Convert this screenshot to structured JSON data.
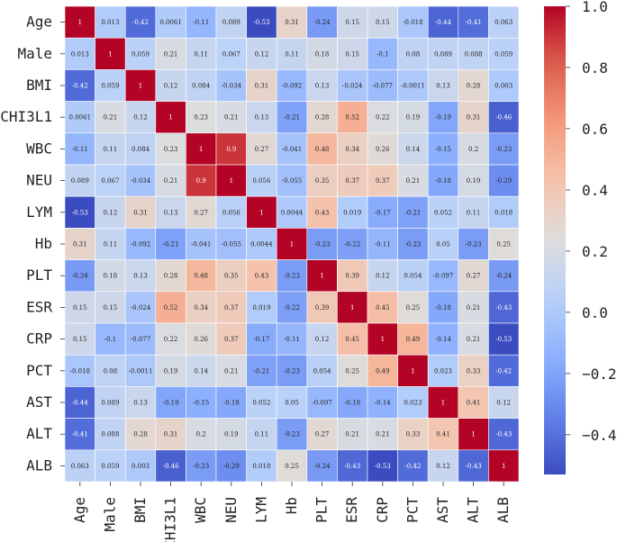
{
  "chart_data": {
    "type": "heatmap",
    "title": "",
    "xlabel": "",
    "ylabel": "",
    "rows": [
      "Age",
      "Male",
      "BMI",
      "CHI3L1",
      "WBC",
      "NEU",
      "LYM",
      "Hb",
      "PLT",
      "ESR",
      "CRP",
      "PCT",
      "AST",
      "ALT",
      "ALB"
    ],
    "columns": [
      "Age",
      "Male",
      "BMI",
      "CHI3L1",
      "WBC",
      "NEU",
      "LYM",
      "Hb",
      "PLT",
      "ESR",
      "CRP",
      "PCT",
      "AST",
      "ALT",
      "ALB"
    ],
    "values": [
      [
        1,
        0.013,
        -0.42,
        0.0061,
        -0.11,
        0.089,
        -0.53,
        0.31,
        -0.24,
        0.15,
        0.15,
        -0.018,
        -0.44,
        -0.41,
        0.063
      ],
      [
        0.013,
        1,
        0.059,
        0.21,
        0.11,
        0.067,
        0.12,
        0.11,
        0.18,
        0.15,
        -0.1,
        0.08,
        0.089,
        0.088,
        0.059
      ],
      [
        -0.42,
        0.059,
        1,
        0.12,
        0.084,
        -0.034,
        0.31,
        -0.092,
        0.13,
        -0.024,
        -0.077,
        -0.0011,
        0.13,
        0.28,
        0.003
      ],
      [
        0.0061,
        0.21,
        0.12,
        1,
        0.23,
        0.21,
        0.13,
        -0.21,
        0.28,
        0.52,
        0.22,
        0.19,
        -0.19,
        0.31,
        -0.46
      ],
      [
        -0.11,
        0.11,
        0.084,
        0.23,
        1,
        0.9,
        0.27,
        -0.041,
        0.48,
        0.34,
        0.26,
        0.14,
        -0.15,
        0.2,
        -0.23
      ],
      [
        0.089,
        0.067,
        -0.034,
        0.21,
        0.9,
        1,
        0.056,
        -0.055,
        0.35,
        0.37,
        0.37,
        0.21,
        -0.18,
        0.19,
        -0.29
      ],
      [
        -0.53,
        0.12,
        0.31,
        0.13,
        0.27,
        0.056,
        1,
        0.0044,
        0.43,
        0.019,
        -0.17,
        -0.21,
        0.052,
        0.11,
        0.018
      ],
      [
        0.31,
        0.11,
        -0.092,
        -0.21,
        -0.041,
        -0.055,
        0.0044,
        1,
        -0.23,
        -0.22,
        -0.11,
        -0.23,
        0.05,
        -0.23,
        0.25
      ],
      [
        -0.24,
        0.18,
        0.13,
        0.28,
        0.48,
        0.35,
        0.43,
        -0.23,
        1,
        0.39,
        0.12,
        0.054,
        -0.097,
        0.27,
        -0.24
      ],
      [
        0.15,
        0.15,
        -0.024,
        0.52,
        0.34,
        0.37,
        0.019,
        -0.22,
        0.39,
        1,
        0.45,
        0.25,
        -0.18,
        0.21,
        -0.43
      ],
      [
        0.15,
        -0.1,
        -0.077,
        0.22,
        0.26,
        0.37,
        -0.17,
        -0.11,
        0.12,
        0.45,
        1,
        0.49,
        -0.14,
        0.21,
        -0.53
      ],
      [
        -0.018,
        0.08,
        -0.0011,
        0.19,
        0.14,
        0.21,
        -0.21,
        -0.23,
        0.054,
        0.25,
        0.49,
        1,
        0.023,
        0.33,
        -0.42
      ],
      [
        -0.44,
        0.089,
        0.13,
        -0.19,
        -0.15,
        -0.18,
        0.052,
        0.05,
        -0.097,
        -0.18,
        -0.14,
        0.023,
        1,
        0.41,
        0.12
      ],
      [
        -0.41,
        0.088,
        0.28,
        0.31,
        0.2,
        0.19,
        0.11,
        -0.23,
        0.27,
        0.21,
        0.21,
        0.33,
        0.41,
        1,
        -0.43
      ],
      [
        0.063,
        0.059,
        0.003,
        -0.46,
        -0.23,
        -0.29,
        0.018,
        0.25,
        -0.24,
        -0.43,
        -0.53,
        -0.42,
        0.12,
        -0.43,
        1
      ]
    ],
    "colormap": "coolwarm",
    "vmin": -0.53,
    "vmax": 1.0,
    "colorbar": {
      "ticks": [
        1.0,
        0.8,
        0.6,
        0.4,
        0.2,
        0.0,
        -0.2,
        -0.4
      ],
      "tick_labels": [
        "1.0",
        "0.8",
        "0.6",
        "0.4",
        "0.2",
        "0.0",
        "−0.2",
        "−0.4"
      ]
    },
    "cell_labels": [
      [
        "1",
        "0.013",
        "-0.42",
        "0.0061",
        "-0.11",
        "0.089",
        "-0.53",
        "0.31",
        "-0.24",
        "0.15",
        "0.15",
        "-0.018",
        "-0.44",
        "-0.41",
        "0.063"
      ],
      [
        "0.013",
        "1",
        "0.059",
        "0.21",
        "0.11",
        "0.067",
        "0.12",
        "0.11",
        "0.18",
        "0.15",
        "-0.1",
        "0.08",
        "0.089",
        "0.088",
        "0.059"
      ],
      [
        "-0.42",
        "0.059",
        "1",
        "0.12",
        "0.084",
        "-0.034",
        "0.31",
        "-0.092",
        "0.13",
        "-0.024",
        "-0.077",
        "-0.0011",
        "0.13",
        "0.28",
        "0.003"
      ],
      [
        "0.0061",
        "0.21",
        "0.12",
        "1",
        "0.23",
        "0.21",
        "0.13",
        "-0.21",
        "0.28",
        "0.52",
        "0.22",
        "0.19",
        "-0.19",
        "0.31",
        "-0.46"
      ],
      [
        "-0.11",
        "0.11",
        "0.084",
        "0.23",
        "1",
        "0.9",
        "0.27",
        "-0.041",
        "0.48",
        "0.34",
        "0.26",
        "0.14",
        "-0.15",
        "0.2",
        "-0.23"
      ],
      [
        "0.089",
        "0.067",
        "-0.034",
        "0.21",
        "0.9",
        "1",
        "0.056",
        "-0.055",
        "0.35",
        "0.37",
        "0.37",
        "0.21",
        "-0.18",
        "0.19",
        "-0.29"
      ],
      [
        "-0.53",
        "0.12",
        "0.31",
        "0.13",
        "0.27",
        "0.056",
        "1",
        "0.0044",
        "0.43",
        "0.019",
        "-0.17",
        "-0.21",
        "0.052",
        "0.11",
        "0.018"
      ],
      [
        "0.31",
        "0.11",
        "-0.092",
        "-0.21",
        "-0.041",
        "-0.055",
        "0.0044",
        "1",
        "-0.23",
        "-0.22",
        "-0.11",
        "-0.23",
        "0.05",
        "-0.23",
        "0.25"
      ],
      [
        "-0.24",
        "0.18",
        "0.13",
        "0.28",
        "0.48",
        "0.35",
        "0.43",
        "-0.23",
        "1",
        "0.39",
        "0.12",
        "0.054",
        "-0.097",
        "0.27",
        "-0.24"
      ],
      [
        "0.15",
        "0.15",
        "-0.024",
        "0.52",
        "0.34",
        "0.37",
        "0.019",
        "-0.22",
        "0.39",
        "1",
        "0.45",
        "0.25",
        "-0.18",
        "0.21",
        "-0.43"
      ],
      [
        "0.15",
        "-0.1",
        "-0.077",
        "0.22",
        "0.26",
        "0.37",
        "-0.17",
        "-0.11",
        "0.12",
        "0.45",
        "1",
        "0.49",
        "-0.14",
        "0.21",
        "-0.53"
      ],
      [
        "-0.018",
        "0.08",
        "-0.0011",
        "0.19",
        "0.14",
        "0.21",
        "-0.21",
        "-0.23",
        "0.054",
        "0.25",
        "0.49",
        "1",
        "0.023",
        "0.33",
        "-0.42"
      ],
      [
        "-0.44",
        "0.089",
        "0.13",
        "-0.19",
        "-0.15",
        "-0.18",
        "0.052",
        "0.05",
        "-0.097",
        "-0.18",
        "-0.14",
        "0.023",
        "1",
        "0.41",
        "0.12"
      ],
      [
        "-0.41",
        "0.088",
        "0.28",
        "0.31",
        "0.2",
        "0.19",
        "0.11",
        "-0.23",
        "0.27",
        "0.21",
        "0.21",
        "0.33",
        "0.41",
        "1",
        "-0.43"
      ],
      [
        "0.063",
        "0.059",
        "0.003",
        "-0.46",
        "-0.23",
        "-0.29",
        "0.018",
        "0.25",
        "-0.24",
        "-0.43",
        "-0.53",
        "-0.42",
        "0.12",
        "-0.43",
        "1"
      ]
    ]
  }
}
